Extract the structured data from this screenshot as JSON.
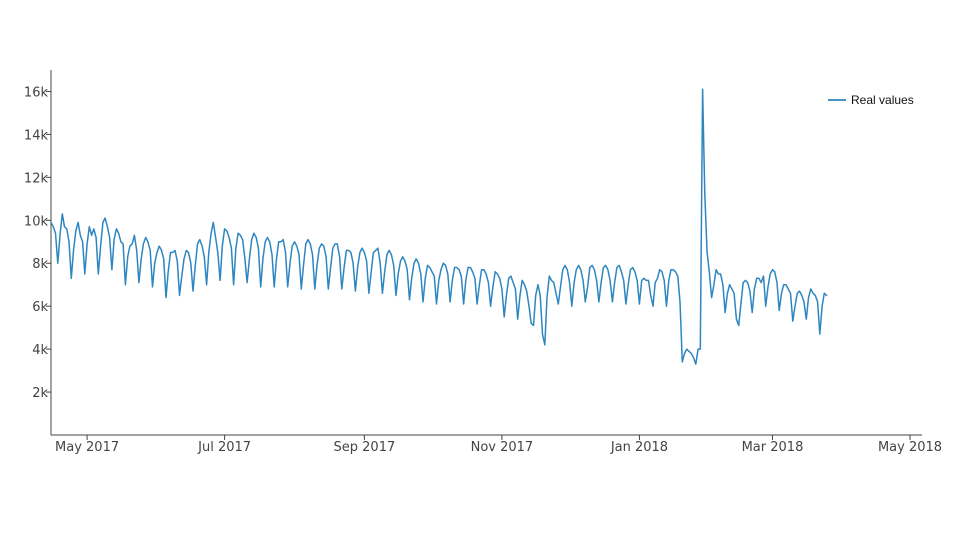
{
  "chart_data": {
    "type": "line",
    "title": "",
    "xlabel": "",
    "ylabel": "",
    "x_start": "2017-04-15",
    "x_end": "2018-05-01",
    "xlim": [
      "2017-04-15",
      "2018-05-01"
    ],
    "ylim": [
      0,
      17000
    ],
    "x_ticks": [
      {
        "date": "2017-05-01",
        "label": "May 2017"
      },
      {
        "date": "2017-07-01",
        "label": "Jul 2017"
      },
      {
        "date": "2017-09-01",
        "label": "Sep 2017"
      },
      {
        "date": "2017-11-01",
        "label": "Nov 2017"
      },
      {
        "date": "2018-01-01",
        "label": "Jan 2018"
      },
      {
        "date": "2018-03-01",
        "label": "Mar 2018"
      },
      {
        "date": "2018-05-01",
        "label": "May 2018"
      }
    ],
    "y_ticks": [
      {
        "value": 2000,
        "label": "2k"
      },
      {
        "value": 4000,
        "label": "4k"
      },
      {
        "value": 6000,
        "label": "6k"
      },
      {
        "value": 8000,
        "label": "8k"
      },
      {
        "value": 10000,
        "label": "10k"
      },
      {
        "value": 12000,
        "label": "12k"
      },
      {
        "value": 14000,
        "label": "14k"
      },
      {
        "value": 16000,
        "label": "16k"
      }
    ],
    "grid": false,
    "legend": {
      "position": "top-right",
      "entries": [
        "Real values"
      ]
    },
    "series": [
      {
        "name": "Real values",
        "color": "#2e86c1",
        "period": "daily",
        "values": [
          9900,
          9700,
          9400,
          8000,
          9300,
          10300,
          9700,
          9600,
          9000,
          7300,
          8600,
          9500,
          9900,
          9300,
          9000,
          7500,
          8900,
          9700,
          9300,
          9600,
          9200,
          7500,
          8800,
          9900,
          10100,
          9700,
          9200,
          7700,
          9100,
          9600,
          9400,
          9000,
          8900,
          7000,
          8300,
          8800,
          8900,
          9300,
          8600,
          7100,
          8200,
          8900,
          9200,
          9000,
          8600,
          6900,
          8000,
          8500,
          8800,
          8600,
          8200,
          6400,
          7600,
          8500,
          8500,
          8600,
          8100,
          6500,
          7400,
          8200,
          8600,
          8500,
          8000,
          6700,
          7900,
          8900,
          9100,
          8800,
          8300,
          7000,
          8500,
          9400,
          9900,
          9200,
          8500,
          7200,
          8800,
          9600,
          9500,
          9200,
          8700,
          7000,
          8700,
          9400,
          9300,
          9100,
          8200,
          7100,
          8200,
          9100,
          9400,
          9200,
          8700,
          6900,
          8200,
          9000,
          9200,
          9000,
          8400,
          6900,
          8200,
          9000,
          9000,
          9100,
          8500,
          6900,
          8000,
          8800,
          9000,
          8800,
          8400,
          6800,
          7900,
          8900,
          9100,
          8900,
          8400,
          6800,
          7900,
          8700,
          8900,
          8800,
          8300,
          6800,
          7800,
          8700,
          8900,
          8900,
          8300,
          6800,
          7800,
          8600,
          8600,
          8500,
          8000,
          6700,
          7800,
          8500,
          8700,
          8500,
          8100,
          6600,
          7600,
          8500,
          8600,
          8700,
          8000,
          6600,
          7600,
          8400,
          8600,
          8400,
          7900,
          6500,
          7500,
          8100,
          8300,
          8100,
          7700,
          6300,
          7300,
          8000,
          8200,
          8000,
          7500,
          6200,
          7300,
          7900,
          7800,
          7600,
          7400,
          6100,
          7200,
          7700,
          8000,
          7900,
          7500,
          6200,
          7200,
          7800,
          7800,
          7700,
          7400,
          6100,
          7200,
          7800,
          7800,
          7600,
          7300,
          6100,
          7000,
          7700,
          7700,
          7500,
          7100,
          6000,
          6900,
          7600,
          7500,
          7300,
          6800,
          5500,
          6500,
          7300,
          7400,
          7100,
          6800,
          5400,
          6500,
          7200,
          7000,
          6700,
          6000,
          5200,
          5100,
          6500,
          7000,
          6500,
          4700,
          4200,
          6400,
          7400,
          7200,
          7100,
          6600,
          6100,
          6900,
          7700,
          7900,
          7700,
          7100,
          6000,
          7100,
          7700,
          7900,
          7700,
          7200,
          6200,
          6900,
          7800,
          7900,
          7700,
          7200,
          6200,
          7100,
          7800,
          7900,
          7700,
          7200,
          6200,
          7100,
          7800,
          7900,
          7600,
          7200,
          6100,
          7000,
          7700,
          7800,
          7600,
          7200,
          6100,
          7200,
          7300,
          7200,
          7200,
          6500,
          6000,
          7100,
          7300,
          7700,
          7600,
          7200,
          6000,
          7200,
          7700,
          7700,
          7600,
          7400,
          6200,
          3400,
          3800,
          4000,
          3900,
          3800,
          3600,
          3300,
          4000,
          4000,
          16100,
          11200,
          8500,
          7600,
          6400,
          7000,
          7700,
          7500,
          7500,
          7000,
          5700,
          6600,
          7000,
          6800,
          6600,
          5400,
          5100,
          6100,
          7100,
          7200,
          7100,
          6700,
          5700,
          6800,
          7300,
          7300,
          7100,
          7400,
          6000,
          6900,
          7500,
          7700,
          7600,
          7100,
          5800,
          6600,
          7000,
          7000,
          6800,
          6600,
          5300,
          6000,
          6600,
          6700,
          6500,
          6200,
          5400,
          6400,
          6800,
          6600,
          6500,
          6200,
          4700,
          6000,
          6600,
          6500
        ]
      }
    ]
  }
}
